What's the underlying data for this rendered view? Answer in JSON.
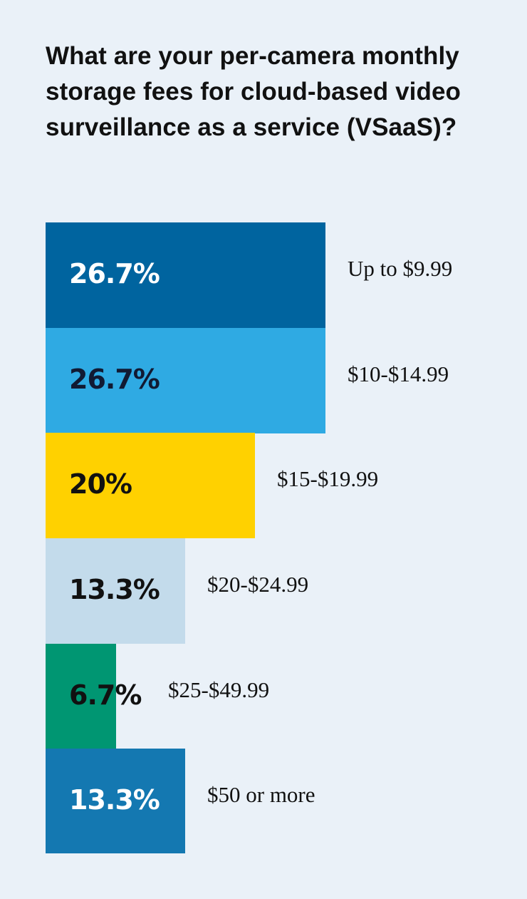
{
  "title": "What are your per-camera monthly storage fees for cloud-based video surveillance as a service (VSaaS)?",
  "chart_data": {
    "type": "bar",
    "orientation": "horizontal",
    "title": "What are your per-camera monthly storage fees for cloud-based video surveillance as a service (VSaaS)?",
    "categories": [
      "Up to $9.99",
      "$10-$14.99",
      "$15-$19.99",
      "$20-$24.99",
      "$25-$49.99",
      "$50 or more"
    ],
    "values": [
      26.7,
      26.7,
      20,
      13.3,
      6.7,
      13.3
    ],
    "value_labels": [
      "26.7%",
      "26.7%",
      "20%",
      "13.3%",
      "6.7%",
      "13.3%"
    ],
    "unit": "%",
    "colors": [
      "#00649f",
      "#2faae3",
      "#ffd100",
      "#c3dbeb",
      "#009672",
      "#1478b1"
    ],
    "label_colors": [
      "#ffffff",
      "#111a33",
      "#111111",
      "#111111",
      "#111111",
      "#ffffff"
    ],
    "grid": false,
    "legend": "none"
  }
}
